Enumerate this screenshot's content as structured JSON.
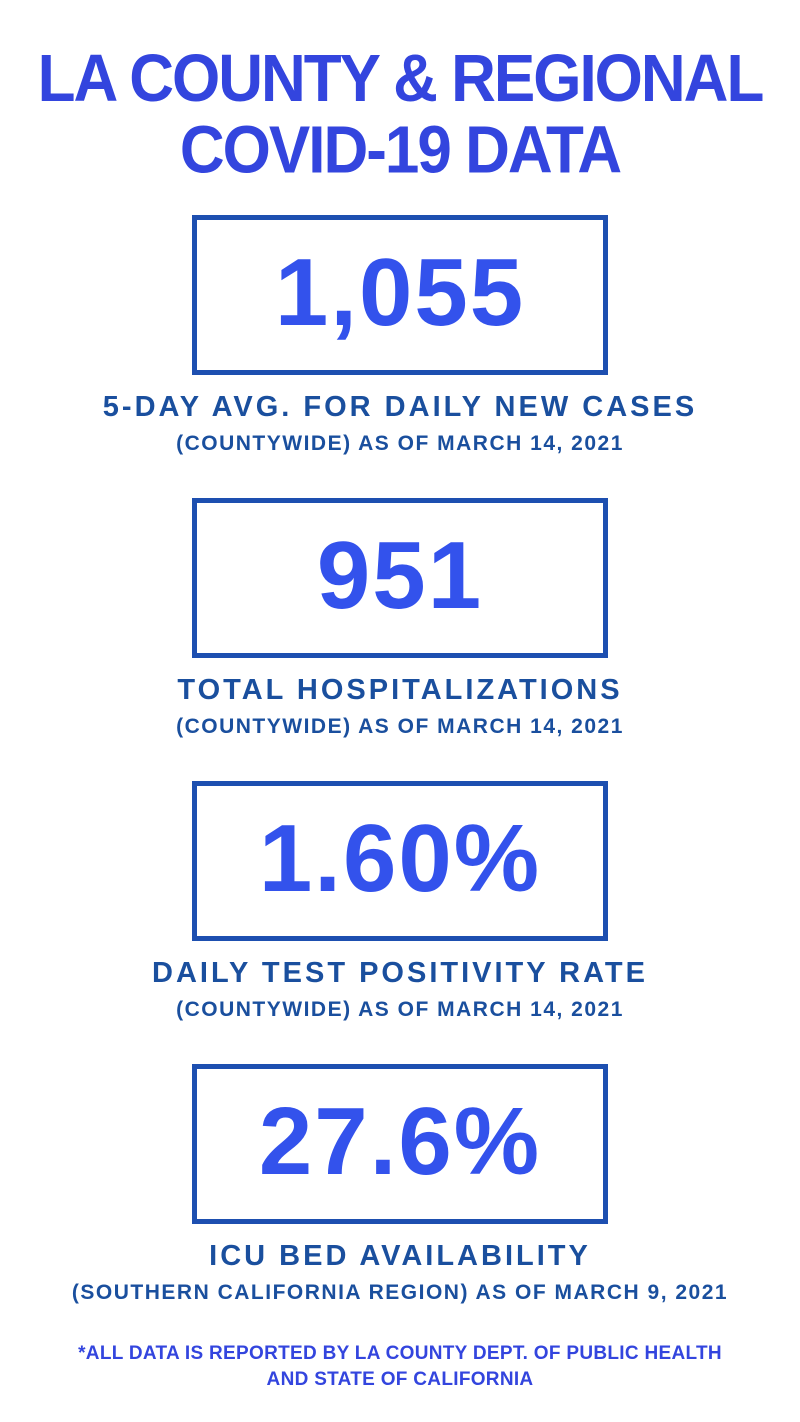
{
  "title": {
    "line1": "LA COUNTY & REGIONAL",
    "line2": "COVID-19 DATA"
  },
  "stats": [
    {
      "value": "1,055",
      "label": "5-DAY AVG. FOR DAILY NEW CASES",
      "sublabel": "(COUNTYWIDE) AS OF MARCH 14, 2021"
    },
    {
      "value": "951",
      "label": "TOTAL HOSPITALIZATIONS",
      "sublabel": "(COUNTYWIDE) AS OF MARCH 14, 2021"
    },
    {
      "value": "1.60%",
      "label": "DAILY TEST POSITIVITY RATE",
      "sublabel": "(COUNTYWIDE) AS OF MARCH 14, 2021"
    },
    {
      "value": "27.6%",
      "label": "ICU BED AVAILABILITY",
      "sublabel": "(SOUTHERN CALIFORNIA REGION) AS OF MARCH 9, 2021"
    }
  ],
  "footer": {
    "line1": "*ALL DATA IS REPORTED BY LA COUNTY DEPT. OF PUBLIC HEALTH",
    "line2": "AND STATE OF CALIFORNIA"
  },
  "colors": {
    "bright_blue": "#3345de",
    "number_blue": "#3352ec",
    "navy": "#1a4f9e",
    "border_blue": "#1d4fb0",
    "background": "#ffffff"
  }
}
